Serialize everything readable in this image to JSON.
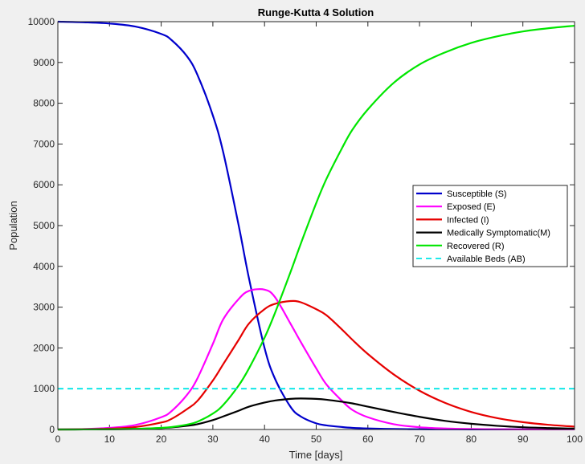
{
  "chart_data": {
    "type": "line",
    "title": "Runge-Kutta 4 Solution",
    "xlabel": "Time [days]",
    "ylabel": "Population",
    "xlim": [
      0,
      100
    ],
    "ylim": [
      0,
      10000
    ],
    "x_ticks": [
      0,
      10,
      20,
      30,
      40,
      50,
      60,
      70,
      80,
      90,
      100
    ],
    "y_ticks": [
      0,
      1000,
      2000,
      3000,
      4000,
      5000,
      6000,
      7000,
      8000,
      9000,
      10000
    ],
    "grid": false,
    "legend_position": "right",
    "x": [
      0,
      5,
      10,
      15,
      20,
      22,
      25,
      27,
      30,
      32,
      35,
      37,
      40,
      42,
      45,
      47,
      50,
      52,
      55,
      57,
      60,
      65,
      70,
      75,
      80,
      85,
      90,
      95,
      100
    ],
    "series": [
      {
        "name": "Susceptible (S)",
        "color": "#0000cc",
        "style": "solid",
        "values": [
          10000,
          9985,
          9955,
          9880,
          9700,
          9550,
          9150,
          8700,
          7700,
          6800,
          5000,
          3700,
          2000,
          1250,
          560,
          320,
          150,
          100,
          60,
          40,
          25,
          12,
          6,
          4,
          3,
          2,
          2,
          1,
          1
        ]
      },
      {
        "name": "Exposed (E)",
        "color": "#ff00ff",
        "style": "solid",
        "values": [
          0,
          10,
          40,
          110,
          300,
          450,
          850,
          1250,
          2100,
          2700,
          3200,
          3400,
          3430,
          3250,
          2600,
          2150,
          1500,
          1100,
          700,
          480,
          300,
          130,
          55,
          25,
          12,
          6,
          3,
          2,
          1
        ]
      },
      {
        "name": "Infected (I)",
        "color": "#e60000",
        "style": "solid",
        "values": [
          0,
          5,
          20,
          60,
          170,
          260,
          500,
          700,
          1200,
          1600,
          2200,
          2600,
          2950,
          3080,
          3150,
          3120,
          2950,
          2800,
          2450,
          2200,
          1850,
          1350,
          950,
          650,
          430,
          280,
          180,
          115,
          70
        ]
      },
      {
        "name": "Medically Symptomatic(M)",
        "color": "#000000",
        "style": "solid",
        "values": [
          0,
          1,
          5,
          15,
          35,
          50,
          90,
          130,
          230,
          320,
          460,
          560,
          660,
          710,
          750,
          760,
          750,
          730,
          680,
          640,
          560,
          430,
          310,
          210,
          140,
          90,
          55,
          35,
          20
        ]
      },
      {
        "name": "Recovered (R)",
        "color": "#00e600",
        "style": "solid",
        "values": [
          0,
          1,
          5,
          15,
          40,
          60,
          120,
          190,
          390,
          600,
          1080,
          1500,
          2250,
          2850,
          3850,
          4550,
          5550,
          6150,
          6900,
          7350,
          7850,
          8500,
          8950,
          9250,
          9480,
          9640,
          9760,
          9840,
          9900
        ]
      },
      {
        "name": "Available Beds (AB)",
        "color": "#00e6e6",
        "style": "dashed",
        "values": [
          1000,
          1000,
          1000,
          1000,
          1000,
          1000,
          1000,
          1000,
          1000,
          1000,
          1000,
          1000,
          1000,
          1000,
          1000,
          1000,
          1000,
          1000,
          1000,
          1000,
          1000,
          1000,
          1000,
          1000,
          1000,
          1000,
          1000,
          1000,
          1000
        ]
      }
    ]
  }
}
